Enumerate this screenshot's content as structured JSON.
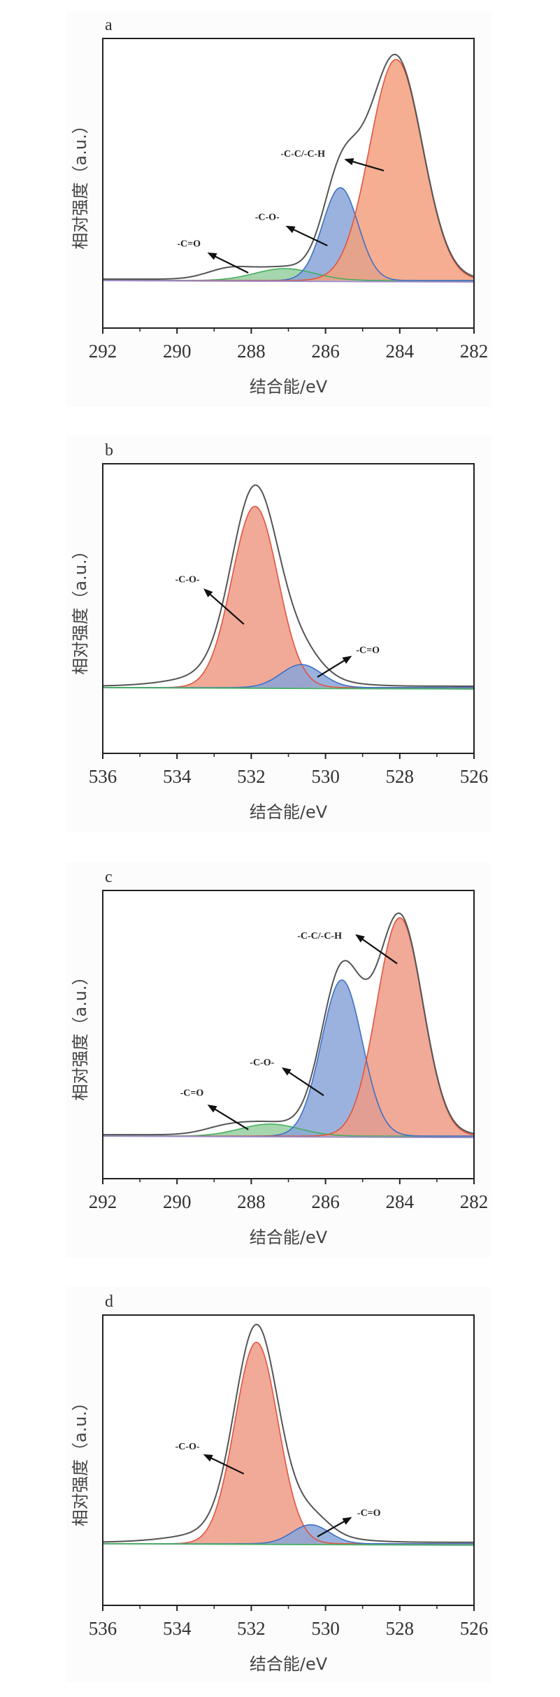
{
  "colors": {
    "envelope": "#555555",
    "orange_fill": "#f3a07e",
    "orange_stroke": "#e0553f",
    "salmon_fill": "#ef9a86",
    "blue_fill": "#8aa5d8",
    "blue_stroke": "#3f70c4",
    "green_fill": "#95cf9f",
    "green_stroke": "#45ae5d",
    "baseline": "#9a8ac0",
    "baseline_green": "#4fae6a",
    "axis": "#222222"
  },
  "chart_data": [
    {
      "type": "area",
      "panel": "a",
      "xlabel": "结合能/eV",
      "ylabel": "相对强度（a.u.）",
      "xlim": [
        292,
        282
      ],
      "ylim": [
        -0.215,
        1.095
      ],
      "xticks": [
        "292",
        "290",
        "288",
        "286",
        "284",
        "282"
      ],
      "xtick_values": [
        292,
        290,
        288,
        286,
        284,
        282
      ],
      "minor_ticks": [
        291,
        289,
        287,
        285,
        283
      ],
      "grid": false,
      "baseline_color": "baseline",
      "components": [
        {
          "name": "-C=O",
          "center": 287.1,
          "height": 0.054,
          "sigma": 0.8,
          "fill": "green_fill",
          "stroke": "green_stroke"
        },
        {
          "name": "-C-O-",
          "center": 285.6,
          "height": 0.42,
          "sigma": 0.48,
          "fill": "blue_fill",
          "stroke": "blue_stroke"
        },
        {
          "name": "-C-C/-C-H",
          "center": 284.1,
          "height": 1.0,
          "sigma": 0.71,
          "fill": "orange_fill",
          "stroke": "orange_stroke"
        }
      ],
      "envelope_extra": [
        {
          "center": 288.6,
          "height": 0.045,
          "sigma": 0.6
        },
        {
          "center": 285.0,
          "height": 0.06,
          "sigma": 0.5
        }
      ],
      "annotations": [
        {
          "text": "-C=O",
          "text_x": 289.68,
          "text_y": 0.17,
          "tail": [
            288.08,
            0.035
          ],
          "tip": [
            289.14,
            0.123
          ]
        },
        {
          "text": "-C-O-",
          "text_x": 287.57,
          "text_y": 0.29,
          "tail": [
            285.95,
            0.158
          ],
          "tip": [
            287.03,
            0.244
          ]
        },
        {
          "text": "-C-C/-C-H",
          "text_x": 286.61,
          "text_y": 0.576,
          "tail": [
            284.43,
            0.497
          ],
          "tip": [
            285.45,
            0.547
          ]
        }
      ]
    },
    {
      "type": "area",
      "panel": "b",
      "xlabel": "结合能/eV",
      "ylabel": "相对强度（a.u.）",
      "xlim": [
        536,
        526
      ],
      "ylim": [
        -0.363,
        1.235
      ],
      "xticks": [
        "536",
        "534",
        "532",
        "530",
        "528",
        "526"
      ],
      "xtick_values": [
        536,
        534,
        532,
        530,
        528,
        526
      ],
      "minor_ticks": [
        535,
        533,
        531,
        529,
        527
      ],
      "grid": false,
      "baseline_color": "baseline_green",
      "components": [
        {
          "name": "-C-O-",
          "center": 531.9,
          "height": 1.0,
          "sigma": 0.62,
          "fill": "salmon_fill",
          "stroke": "orange_stroke"
        },
        {
          "name": "-C=O",
          "center": 530.65,
          "height": 0.127,
          "sigma": 0.55,
          "fill": "blue_fill",
          "stroke": "blue_stroke"
        }
      ],
      "envelope_extra": [
        {
          "center": 532.0,
          "height": 0.1,
          "sigma": 1.45
        }
      ],
      "annotations": [
        {
          "text": "-C-O-",
          "text_x": 533.72,
          "text_y": 0.6,
          "tail": [
            532.2,
            0.35
          ],
          "tip": [
            533.25,
            0.54
          ]
        },
        {
          "text": "-C=O",
          "text_x": 528.86,
          "text_y": 0.21,
          "tail": [
            530.22,
            0.058
          ],
          "tip": [
            529.33,
            0.17
          ]
        }
      ]
    },
    {
      "type": "area",
      "panel": "c",
      "xlabel": "结合能/eV",
      "ylabel": "相对强度（a.u.）",
      "xlim": [
        292,
        282
      ],
      "ylim": [
        -0.195,
        1.125
      ],
      "xticks": [
        "292",
        "290",
        "288",
        "286",
        "284",
        "282"
      ],
      "xtick_values": [
        292,
        290,
        288,
        286,
        284,
        282
      ],
      "minor_ticks": [
        291,
        289,
        287,
        285,
        283
      ],
      "grid": false,
      "baseline_color": "baseline",
      "components": [
        {
          "name": "-C=O",
          "center": 287.5,
          "height": 0.055,
          "sigma": 0.8,
          "fill": "green_fill",
          "stroke": "green_stroke"
        },
        {
          "name": "-C-O-",
          "center": 285.56,
          "height": 0.715,
          "sigma": 0.55,
          "fill": "blue_fill",
          "stroke": "blue_stroke"
        },
        {
          "name": "-C-C/-C-H",
          "center": 284.0,
          "height": 1.0,
          "sigma": 0.62,
          "fill": "salmon_fill",
          "stroke": "orange_stroke"
        }
      ],
      "envelope_extra": [
        {
          "center": 288.7,
          "height": 0.03,
          "sigma": 0.6
        },
        {
          "center": 285.6,
          "height": 0.03,
          "sigma": 0.6
        }
      ],
      "annotations": [
        {
          "text": "-C=O",
          "text_x": 289.6,
          "text_y": 0.2,
          "tail": [
            288.08,
            0.03
          ],
          "tip": [
            289.14,
            0.14
          ]
        },
        {
          "text": "-C-O-",
          "text_x": 287.71,
          "text_y": 0.34,
          "tail": [
            286.05,
            0.186
          ],
          "tip": [
            287.14,
            0.31
          ]
        },
        {
          "text": "-C-C/-C-H",
          "text_x": 286.16,
          "text_y": 0.92,
          "tail": [
            284.07,
            0.79
          ],
          "tip": [
            285.16,
            0.92
          ]
        }
      ]
    },
    {
      "type": "area",
      "panel": "d",
      "xlabel": "结合能/eV",
      "ylabel": "相对强度（a.u.）",
      "xlim": [
        536,
        526
      ],
      "ylim": [
        -0.306,
        1.135
      ],
      "xticks": [
        "536",
        "534",
        "532",
        "530",
        "528",
        "526"
      ],
      "xtick_values": [
        536,
        534,
        532,
        530,
        528,
        526
      ],
      "minor_ticks": [
        535,
        533,
        531,
        529,
        527
      ],
      "grid": false,
      "baseline_color": "baseline_green",
      "components": [
        {
          "name": "-C-O-",
          "center": 531.86,
          "height": 1.0,
          "sigma": 0.58,
          "fill": "salmon_fill",
          "stroke": "orange_stroke"
        },
        {
          "name": "-C=O",
          "center": 530.4,
          "height": 0.094,
          "sigma": 0.5,
          "fill": "blue_fill",
          "stroke": "blue_stroke"
        }
      ],
      "envelope_extra": [
        {
          "center": 531.9,
          "height": 0.08,
          "sigma": 1.5
        }
      ],
      "annotations": [
        {
          "text": "-C-O-",
          "text_x": 533.72,
          "text_y": 0.486,
          "tail": [
            532.2,
            0.347
          ],
          "tip": [
            533.25,
            0.44
          ]
        },
        {
          "text": "-C=O",
          "text_x": 528.83,
          "text_y": 0.156,
          "tail": [
            530.22,
            0.035
          ],
          "tip": [
            529.33,
            0.128
          ]
        }
      ]
    }
  ]
}
